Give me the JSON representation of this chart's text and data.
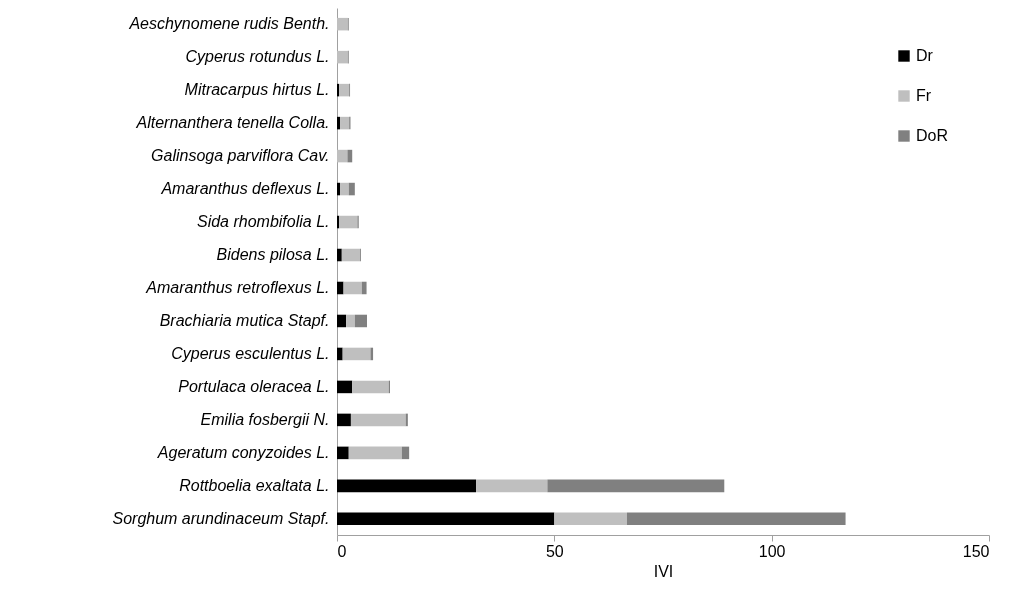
{
  "chart_data": {
    "type": "bar",
    "orientation": "horizontal",
    "stacked": true,
    "xlabel": "IVI",
    "categories": [
      "Aeschynomene rudis Benth.",
      "Cyperus rotundus L.",
      "Mitracarpus hirtus L.",
      "Alternanthera tenella Colla.",
      "Galinsoga parviflora Cav.",
      "Amaranthus deflexus L.",
      "Sida rhombifolia L.",
      "Bidens pilosa L.",
      "Amaranthus retroflexus L.",
      "Brachiaria mutica Stapf.",
      "Cyperus esculentus L.",
      "Portulaca oleracea L.",
      "Emilia fosbergii N.",
      "Ageratum conyzoides L.",
      "Rottboelia exaltata L.",
      "Sorghum arundinaceum Stapf."
    ],
    "series": [
      {
        "name": "Dr",
        "color": "#000000",
        "values": [
          0,
          0,
          0.5,
          0.7,
          0,
          0.7,
          0.5,
          1.1,
          1.5,
          2.1,
          1.3,
          3.5,
          3.2,
          2.7,
          32,
          50
        ]
      },
      {
        "name": "Fr",
        "color": "#bfbfbf",
        "values": [
          2.5,
          2.5,
          2.3,
          2.1,
          2.4,
          2,
          4.2,
          4.2,
          4.2,
          2,
          6.4,
          8.4,
          12.6,
          12.2,
          16.4,
          16.7
        ]
      },
      {
        "name": "DoR",
        "color": "#808080",
        "values": [
          0.2,
          0.2,
          0.2,
          0.3,
          1.1,
          1.4,
          0.3,
          0.2,
          1.1,
          2.8,
          0.6,
          0.3,
          0.5,
          1.7,
          40.7,
          50.3
        ]
      }
    ],
    "xlim": [
      0,
      150
    ],
    "xticks": [
      0,
      50,
      100,
      150
    ],
    "legend": "top right"
  }
}
